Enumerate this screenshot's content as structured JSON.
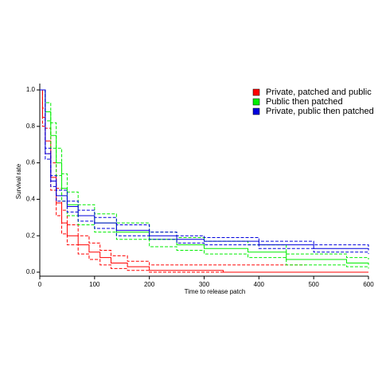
{
  "chart_data": {
    "type": "step",
    "xlabel": "Time to release patch",
    "ylabel": "Survival rate",
    "xlim": [
      0,
      600
    ],
    "ylim": [
      0,
      1
    ],
    "xticks": [
      0,
      100,
      200,
      300,
      400,
      500,
      600
    ],
    "yticks": [
      {
        "value": 0,
        "label": "0.0"
      },
      {
        "value": 0.2,
        "label": "0.2"
      },
      {
        "value": 0.4,
        "label": "0.4"
      },
      {
        "value": 0.6,
        "label": "0.6"
      },
      {
        "value": 0.8,
        "label": "0.8"
      },
      {
        "value": 1,
        "label": "1.0"
      }
    ],
    "legend": "upper right",
    "series": [
      {
        "name": "Private, patched and public",
        "color": "#ff0000",
        "x": [
          0,
          5,
          10,
          20,
          30,
          40,
          50,
          70,
          90,
          110,
          130,
          160,
          200,
          335,
          485,
          600
        ],
        "values": [
          1.0,
          0.85,
          0.72,
          0.52,
          0.38,
          0.27,
          0.2,
          0.15,
          0.11,
          0.08,
          0.05,
          0.03,
          0.01,
          0.0,
          0.0,
          0.0
        ],
        "upper": [
          1.0,
          0.9,
          0.79,
          0.6,
          0.46,
          0.34,
          0.26,
          0.2,
          0.16,
          0.12,
          0.09,
          0.06,
          0.04,
          0.04,
          0.04,
          null
        ],
        "lower": [
          1.0,
          0.8,
          0.65,
          0.45,
          0.31,
          0.21,
          0.15,
          0.1,
          0.07,
          0.04,
          0.02,
          0.01,
          0.0,
          0.0,
          0.0,
          null
        ]
      },
      {
        "name": "Public then patched",
        "color": "#00ee00",
        "x": [
          0,
          10,
          20,
          30,
          40,
          50,
          70,
          100,
          140,
          200,
          250,
          300,
          380,
          450,
          560,
          600
        ],
        "values": [
          1.0,
          0.88,
          0.75,
          0.6,
          0.46,
          0.37,
          0.31,
          0.27,
          0.22,
          0.18,
          0.15,
          0.13,
          0.11,
          0.07,
          0.05,
          0.04
        ],
        "upper": [
          1.0,
          0.93,
          0.82,
          0.68,
          0.54,
          0.44,
          0.37,
          0.32,
          0.27,
          0.22,
          0.19,
          0.17,
          0.15,
          0.1,
          0.08,
          0.07
        ],
        "lower": [
          1.0,
          0.83,
          0.68,
          0.53,
          0.39,
          0.31,
          0.26,
          0.22,
          0.18,
          0.14,
          0.12,
          0.1,
          0.08,
          0.04,
          0.03,
          0.02
        ]
      },
      {
        "name": "Private, public then patched",
        "color": "#0000dd",
        "x": [
          0,
          10,
          20,
          30,
          50,
          70,
          100,
          140,
          200,
          250,
          300,
          400,
          500,
          600
        ],
        "values": [
          1.0,
          0.65,
          0.5,
          0.42,
          0.36,
          0.31,
          0.27,
          0.23,
          0.2,
          0.18,
          0.17,
          0.15,
          0.13,
          0.12
        ],
        "upper": [
          1.0,
          0.68,
          0.53,
          0.45,
          0.39,
          0.34,
          0.3,
          0.26,
          0.22,
          0.2,
          0.19,
          0.17,
          0.15,
          0.14
        ],
        "lower": [
          1.0,
          0.62,
          0.47,
          0.39,
          0.33,
          0.28,
          0.24,
          0.2,
          0.18,
          0.16,
          0.15,
          0.13,
          0.11,
          0.1
        ]
      }
    ]
  }
}
